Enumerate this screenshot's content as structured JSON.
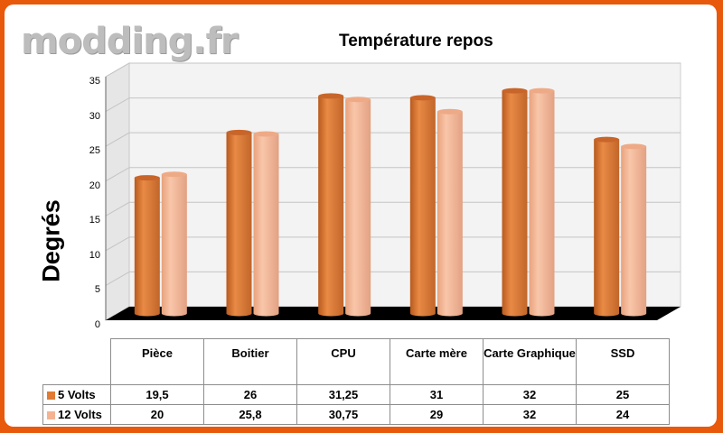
{
  "watermark": "modding.fr",
  "colors": {
    "frame": "#e8590c",
    "series_5v": "#e07a35",
    "series_12v": "#f5b392",
    "floor": "#000000"
  },
  "chart_data": {
    "type": "bar",
    "title": "Température repos",
    "ylabel": "Degrés",
    "xlabel": "",
    "ylim": [
      0,
      35
    ],
    "yticks": [
      0,
      5,
      10,
      15,
      20,
      25,
      30,
      35
    ],
    "grid": true,
    "legend_placement": "table-left",
    "categories": [
      "Pièce",
      "Boitier",
      "CPU",
      "Carte mère",
      "Carte Graphique",
      "SSD"
    ],
    "series": [
      {
        "name": "5 Volts",
        "values": [
          "19,5",
          "26",
          "31,25",
          "31",
          "32",
          "25"
        ],
        "numeric": [
          19.5,
          26,
          31.25,
          31,
          32,
          25
        ],
        "color": "#e07a35"
      },
      {
        "name": "12 Volts",
        "values": [
          "20",
          "25,8",
          "30,75",
          "29",
          "32",
          "24"
        ],
        "numeric": [
          20,
          25.8,
          30.75,
          29,
          32,
          24
        ],
        "color": "#f5b392"
      }
    ]
  }
}
